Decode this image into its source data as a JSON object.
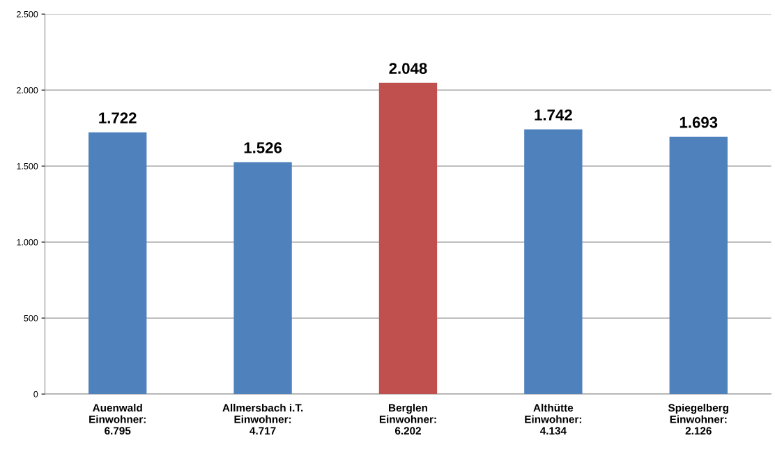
{
  "chart_data": {
    "type": "bar",
    "categories": [
      "Auenwald\nEinwohner:\n6.795",
      "Allmersbach i.T.\nEinwohner:\n4.717",
      "Berglen\nEinwohner:\n6.202",
      "Althütte\nEinwohner:\n4.134",
      "Spiegelberg\nEinwohner:\n2.126"
    ],
    "values": [
      1722,
      1526,
      2048,
      1742,
      1693
    ],
    "colors": [
      "#4f81bd",
      "#4f81bd",
      "#c0504d",
      "#4f81bd",
      "#4f81bd"
    ],
    "value_labels": [
      "1.722",
      "1.526",
      "2.048",
      "1.742",
      "1.693"
    ],
    "ylim": [
      0,
      2500
    ],
    "yticks": [
      0,
      500,
      {
        "value": 1000,
        "label": "1.000"
      },
      {
        "value": 1500,
        "label": "1.500"
      },
      {
        "value": 2000,
        "label": "2.000"
      },
      {
        "value": 2500,
        "label": "2.500"
      }
    ],
    "grid": "y",
    "legend": false
  }
}
